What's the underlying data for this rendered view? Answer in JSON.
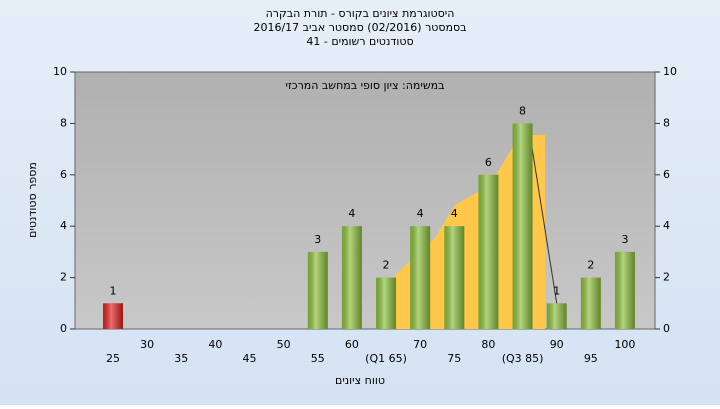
{
  "chart_data": {
    "type": "bar",
    "title": "היסטוגרמת ציונים בקורס - תורת הבקרה",
    "subtitle": "בסמסטר  (02/2016)  סמסטר אביב 2016/17",
    "subtitle2": "סטודנטים רשומים - 41",
    "annotation": "במשימה: ציון סופי במחשב המרכזי",
    "x_label": "טווח ציונים",
    "y_label": "מספר סטודנטים",
    "categories": [
      "25",
      "30",
      "35",
      "40",
      "45",
      "50",
      "55",
      "60",
      "(Q1 65)",
      "70",
      "75",
      "80",
      "(Q3 85)",
      "90",
      "95",
      "100"
    ],
    "values": [
      1,
      0,
      0,
      0,
      0,
      0,
      3,
      4,
      2,
      4,
      4,
      6,
      8,
      1,
      2,
      3
    ],
    "colors": [
      "#e02020",
      "#8cbf3c",
      "#8cbf3c",
      "#8cbf3c",
      "#8cbf3c",
      "#8cbf3c",
      "#8cbf3c",
      "#8cbf3c",
      "#8cbf3c",
      "#8cbf3c",
      "#8cbf3c",
      "#8cbf3c",
      "#8cbf3c",
      "#8cbf3c",
      "#8cbf3c",
      "#8cbf3c"
    ],
    "ylim": [
      0,
      10
    ],
    "yticks": [
      0,
      2,
      4,
      6,
      8,
      10
    ],
    "y2lim": [
      0,
      10
    ],
    "y2ticks": [
      0,
      2,
      4,
      6,
      8,
      10
    ],
    "grid": false
  }
}
